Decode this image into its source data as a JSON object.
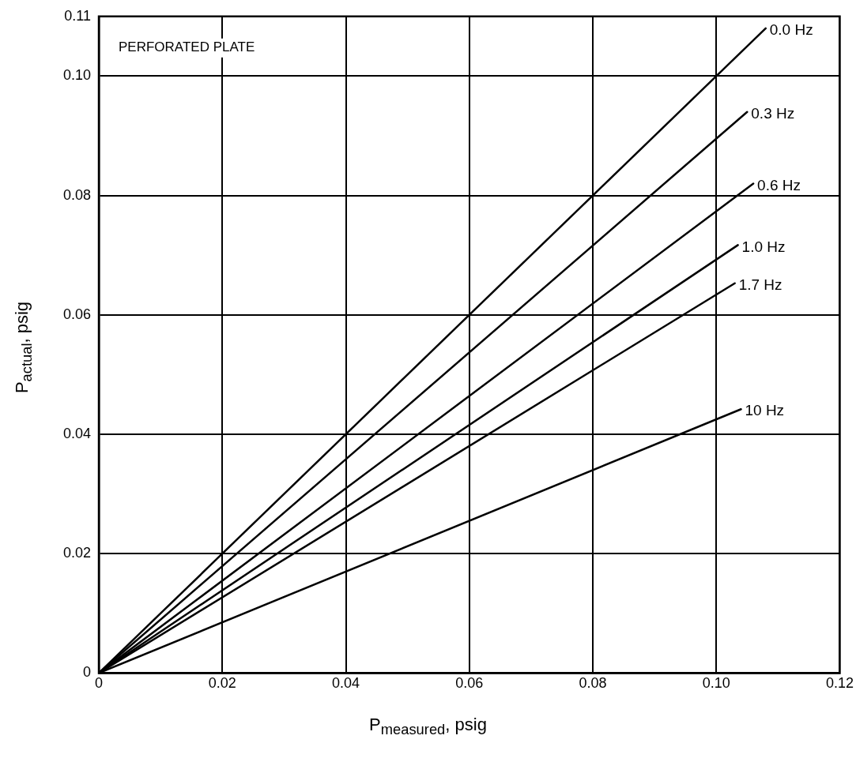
{
  "chart_data": {
    "type": "line",
    "xlabel": "P$_{measured}$, psig",
    "ylabel": "P$_{actual}$, psig",
    "annotations": [
      "PERFORATED PLATE"
    ],
    "series": [
      {
        "name": "0.0 Hz",
        "color": "#000000",
        "x": [
          0,
          0.108
        ],
        "values": [
          0,
          0.108
        ]
      },
      {
        "name": "0.3 Hz",
        "color": "#000000",
        "x": [
          0,
          0.105
        ],
        "values": [
          0,
          0.094
        ]
      },
      {
        "name": "0.6 Hz",
        "color": "#000000",
        "x": [
          0,
          0.106
        ],
        "values": [
          0,
          0.082
        ]
      },
      {
        "name": "1.0 Hz",
        "color": "#000000",
        "x": [
          0,
          0.1035
        ],
        "values": [
          0,
          0.0717
        ]
      },
      {
        "name": "1.7 Hz",
        "color": "#000000",
        "x": [
          0,
          0.103
        ],
        "values": [
          0,
          0.0653
        ]
      },
      {
        "name": "10 Hz",
        "color": "#000000",
        "x": [
          0,
          0.104
        ],
        "values": [
          0,
          0.0442
        ]
      }
    ],
    "xlim": [
      0,
      0.12
    ],
    "xticks": [
      0,
      0.02,
      0.04,
      0.06,
      0.08,
      {
        "value": 0.1,
        "label": "0.10"
      },
      0.12
    ],
    "ylim": [
      0,
      0.11
    ],
    "yticks": [
      0,
      0.02,
      0.04,
      0.06,
      0.08,
      {
        "value": 0.1,
        "label": "0.10"
      },
      0.11
    ],
    "grid": true,
    "legend": false,
    "marker": "none",
    "line_style": "solid"
  }
}
